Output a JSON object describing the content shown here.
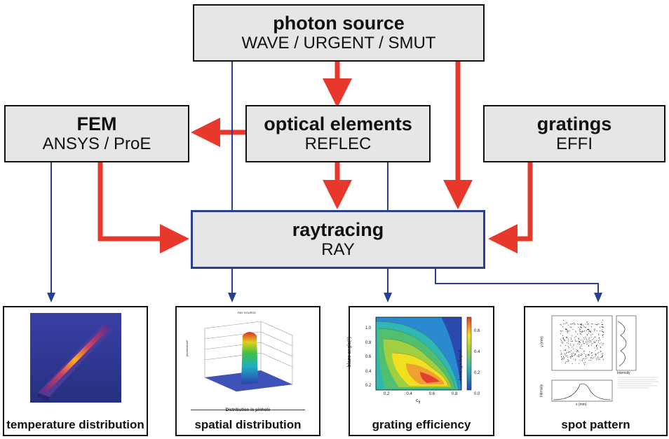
{
  "nodes": {
    "photon_source": {
      "title": "photon source",
      "subtitle": "WAVE / URGENT / SMUT"
    },
    "fem": {
      "title": "FEM",
      "subtitle": "ANSYS / ProE"
    },
    "optical_elements": {
      "title": "optical elements",
      "subtitle": "REFLEC"
    },
    "gratings": {
      "title": "gratings",
      "subtitle": "EFFI"
    },
    "raytracing": {
      "title": "raytracing",
      "subtitle": "RAY"
    }
  },
  "panels": {
    "temperature": {
      "caption": "temperature distribution"
    },
    "spatial": {
      "caption": "spatial distribution",
      "plot_label": "Distribution in pinhole"
    },
    "grating": {
      "caption": "grating efficiency",
      "y_label": "blaze angle(°)",
      "x_label": "c",
      "x_label_sub": "ff",
      "colorbar_label": "grating efficiency",
      "x_ticks": [
        "0.2",
        "0.4",
        "0.6",
        "0.8"
      ],
      "y_ticks": [
        "1.0",
        "0.8",
        "0.6",
        "0.4",
        "0.2"
      ],
      "cbar_ticks": [
        "0.6",
        "0.4",
        "0.2",
        "0.0"
      ]
    },
    "spot": {
      "caption": "spot pattern",
      "x_label": "x (mm)",
      "y_label": "y (mm)",
      "side_label": "Intensity",
      "bottom_label": "Intensity"
    }
  },
  "colors": {
    "red_arrow": "#e8382c",
    "blue_arrow": "#2b3f8f",
    "box_fill": "#e6e6e6"
  }
}
